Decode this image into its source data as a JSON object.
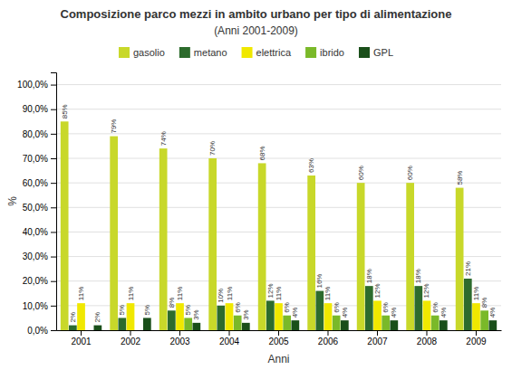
{
  "chart_data": {
    "type": "bar",
    "title": "Composizione parco mezzi in ambito urbano per tipo di alimentazione",
    "subtitle": "(Anni 2001-2009)",
    "x_label": "Anni",
    "y_label": "%",
    "categories": [
      "2001",
      "2002",
      "2003",
      "2004",
      "2005",
      "2006",
      "2007",
      "2008",
      "2009"
    ],
    "series": [
      {
        "name": "gasolio",
        "color": "#c8d82a",
        "values": [
          85,
          79,
          74,
          70,
          68,
          63,
          60,
          60,
          58
        ],
        "value_labels": [
          "85%",
          "79%",
          "74%",
          "70%",
          "68%",
          "63%",
          "60%",
          "60%",
          "58%"
        ]
      },
      {
        "name": "metano",
        "color": "#2d6b2d",
        "values": [
          2,
          5,
          8,
          10,
          12,
          16,
          18,
          18,
          21
        ],
        "value_labels": [
          "2%",
          "5%",
          "8%",
          "10%",
          "12%",
          "16%",
          "18%",
          "18%",
          "21%"
        ]
      },
      {
        "name": "elettrica",
        "color": "#f0e800",
        "values": [
          11,
          11,
          11,
          11,
          11,
          11,
          12,
          12,
          11
        ],
        "value_labels": [
          "11%",
          "11%",
          "11%",
          "11%",
          "11%",
          "11%",
          "12%",
          "12%",
          "11%"
        ]
      },
      {
        "name": "ibrido",
        "color": "#7ab929",
        "values": [
          0,
          0,
          5,
          6,
          6,
          6,
          6,
          6,
          8
        ],
        "value_labels": [
          null,
          null,
          "5%",
          "6%",
          "6%",
          "6%",
          "6%",
          "6%",
          "8%"
        ]
      },
      {
        "name": "GPL",
        "color": "#1a4f1a",
        "values": [
          2,
          5,
          3,
          3,
          4,
          4,
          4,
          4,
          4
        ],
        "value_labels": [
          "2%",
          "5%",
          "3%",
          "3%",
          "4%",
          "4%",
          "4%",
          "4%",
          "4%"
        ]
      }
    ],
    "ylim": [
      0,
      105
    ],
    "yticks": [
      {
        "value": 0,
        "label": "0,0%"
      },
      {
        "value": 10,
        "label": "10,0%"
      },
      {
        "value": 20,
        "label": "20,0%"
      },
      {
        "value": 30,
        "label": "30,0%"
      },
      {
        "value": 40,
        "label": "40,0%"
      },
      {
        "value": 50,
        "label": "50,0%"
      },
      {
        "value": 60,
        "label": "60,0%"
      },
      {
        "value": 70,
        "label": "70,0%"
      },
      {
        "value": 80,
        "label": "80,0%"
      },
      {
        "value": 90,
        "label": "90,0%"
      },
      {
        "value": 100,
        "label": "100,0%"
      }
    ],
    "grid": true,
    "legend": "top",
    "data_labels": true
  }
}
